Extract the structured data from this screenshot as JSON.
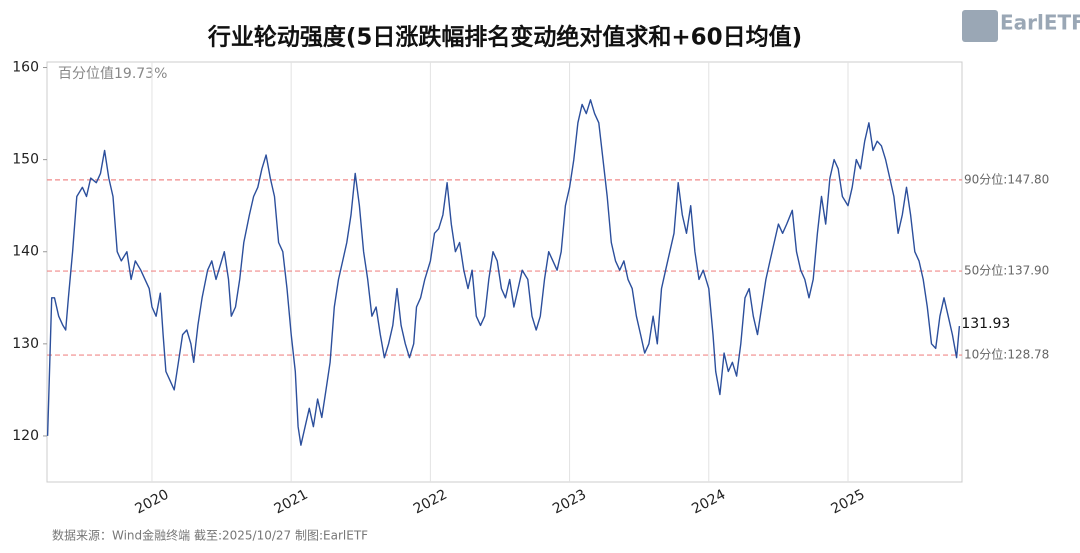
{
  "chart_data": {
    "type": "line",
    "title": "行业轮动强度(5日涨跌幅排名变动绝对值求和+60日均值)",
    "annotation": "百分位值19.73%",
    "source": "数据来源：Wind金融终端 截至:2025/10/27 制图:EarlETF",
    "logo": "EarlETF",
    "xlim": [
      2019.246,
      2025.819
    ],
    "xticks": [
      2020,
      2021,
      2022,
      2023,
      2024,
      2025
    ],
    "ylim": [
      115,
      160.6
    ],
    "yticks": [
      120,
      130,
      140,
      150,
      160
    ],
    "grid": true,
    "reference_lines": [
      {
        "value": 147.8,
        "label": "90分位:147.80",
        "color": "#f08a8a"
      },
      {
        "value": 137.9,
        "label": "50分位:137.90",
        "color": "#f08a8a"
      },
      {
        "value": 128.78,
        "label": "10分位:128.78",
        "color": "#f08a8a"
      }
    ],
    "x": [
      2019.25,
      2019.28,
      2019.3,
      2019.33,
      2019.36,
      2019.38,
      2019.4,
      2019.43,
      2019.46,
      2019.5,
      2019.53,
      2019.56,
      2019.6,
      2019.63,
      2019.66,
      2019.69,
      2019.72,
      2019.75,
      2019.78,
      2019.82,
      2019.85,
      2019.88,
      2019.92,
      2019.95,
      2019.98,
      2020.0,
      2020.03,
      2020.06,
      2020.08,
      2020.1,
      2020.13,
      2020.16,
      2020.19,
      2020.22,
      2020.25,
      2020.28,
      2020.3,
      2020.33,
      2020.36,
      2020.4,
      2020.43,
      2020.46,
      2020.49,
      2020.52,
      2020.55,
      2020.57,
      2020.6,
      2020.63,
      2020.66,
      2020.7,
      2020.73,
      2020.76,
      2020.79,
      2020.82,
      2020.85,
      2020.88,
      2020.91,
      2020.94,
      2020.97,
      2021.0,
      2021.03,
      2021.05,
      2021.07,
      2021.1,
      2021.13,
      2021.16,
      2021.19,
      2021.22,
      2021.25,
      2021.28,
      2021.31,
      2021.34,
      2021.37,
      2021.4,
      2021.43,
      2021.46,
      2021.49,
      2021.52,
      2021.55,
      2021.58,
      2021.61,
      2021.64,
      2021.67,
      2021.7,
      2021.73,
      2021.76,
      2021.79,
      2021.82,
      2021.85,
      2021.88,
      2021.9,
      2021.93,
      2021.96,
      2022.0,
      2022.03,
      2022.06,
      2022.09,
      2022.12,
      2022.15,
      2022.18,
      2022.21,
      2022.24,
      2022.27,
      2022.3,
      2022.33,
      2022.36,
      2022.39,
      2022.42,
      2022.45,
      2022.48,
      2022.51,
      2022.54,
      2022.57,
      2022.6,
      2022.63,
      2022.66,
      2022.7,
      2022.73,
      2022.76,
      2022.79,
      2022.82,
      2022.85,
      2022.88,
      2022.91,
      2022.94,
      2022.97,
      2023.0,
      2023.03,
      2023.06,
      2023.09,
      2023.12,
      2023.15,
      2023.18,
      2023.21,
      2023.24,
      2023.27,
      2023.3,
      2023.33,
      2023.36,
      2023.39,
      2023.42,
      2023.45,
      2023.48,
      2023.51,
      2023.54,
      2023.57,
      2023.6,
      2023.63,
      2023.66,
      2023.69,
      2023.72,
      2023.75,
      2023.78,
      2023.81,
      2023.84,
      2023.87,
      2023.9,
      2023.93,
      2023.96,
      2024.0,
      2024.03,
      2024.05,
      2024.08,
      2024.11,
      2024.14,
      2024.17,
      2024.2,
      2024.23,
      2024.26,
      2024.29,
      2024.32,
      2024.35,
      2024.38,
      2024.41,
      2024.44,
      2024.47,
      2024.5,
      2024.53,
      2024.56,
      2024.6,
      2024.63,
      2024.66,
      2024.69,
      2024.72,
      2024.75,
      2024.78,
      2024.81,
      2024.84,
      2024.87,
      2024.9,
      2024.93,
      2024.96,
      2025.0,
      2025.03,
      2025.06,
      2025.09,
      2025.12,
      2025.15,
      2025.18,
      2025.21,
      2025.24,
      2025.27,
      2025.3,
      2025.33,
      2025.36,
      2025.39,
      2025.42,
      2025.45,
      2025.48,
      2025.51,
      2025.54,
      2025.57,
      2025.6,
      2025.63,
      2025.66,
      2025.69,
      2025.72,
      2025.75,
      2025.78,
      2025.8
    ],
    "series": [
      {
        "color": "#2c4f9c",
        "values": [
          120,
          135,
          135,
          133,
          132,
          131.5,
          135,
          140,
          146,
          147,
          146,
          148,
          147.5,
          148.5,
          151,
          148,
          146,
          140,
          139,
          140,
          137,
          139,
          138,
          137,
          136,
          134,
          133,
          135.5,
          131,
          127,
          126,
          125,
          128,
          131,
          131.5,
          130,
          128,
          132,
          135,
          138,
          139,
          137,
          138.5,
          140,
          137,
          133,
          134,
          137,
          141,
          144,
          146,
          147,
          149,
          150.5,
          148,
          146,
          141,
          140,
          136,
          131,
          127,
          121,
          119,
          121,
          123,
          121,
          124,
          122,
          125,
          128,
          134,
          137,
          139,
          141,
          144,
          148.5,
          145,
          140,
          137,
          133,
          134,
          131,
          128.5,
          130,
          132,
          136,
          132,
          130,
          128.5,
          130,
          134,
          135,
          137,
          139,
          142,
          142.5,
          144,
          147.5,
          143,
          140,
          141,
          138,
          136,
          138,
          133,
          132,
          133,
          137,
          140,
          139,
          136,
          135,
          137,
          134,
          136,
          138,
          137,
          133,
          131.5,
          133,
          137,
          140,
          139,
          138,
          140,
          145,
          147,
          150,
          154,
          156,
          155,
          156.5,
          155,
          154,
          150,
          146,
          141,
          139,
          138,
          139,
          137,
          136,
          133,
          131,
          129,
          130,
          133,
          130,
          136,
          138,
          140,
          142,
          147.5,
          144,
          142,
          145,
          140,
          137,
          138,
          136,
          131,
          127,
          124.5,
          129,
          127,
          128,
          126.5,
          130,
          135,
          136,
          133,
          131,
          134,
          137,
          139,
          141,
          143,
          142,
          143,
          144.5,
          140,
          138,
          137,
          135,
          137,
          142,
          146,
          143,
          148,
          150,
          149,
          146,
          145,
          147,
          150,
          149,
          152,
          154,
          151,
          152,
          151.5,
          150,
          148,
          146,
          142,
          144,
          147,
          144,
          140,
          139,
          137,
          134,
          130,
          129.5,
          133,
          135,
          133,
          131,
          128.5,
          131.93
        ]
      }
    ]
  }
}
